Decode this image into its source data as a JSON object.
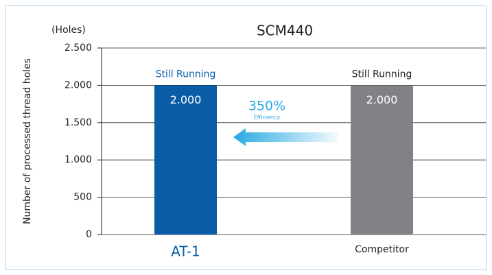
{
  "chart_data": {
    "type": "bar",
    "title": "SCM440",
    "y_unit_label": "(Holes)",
    "y_axis_label": "Number of processed thread holes",
    "categories": [
      "AT-1",
      "Competitor"
    ],
    "values": [
      2000,
      2000
    ],
    "value_labels": [
      "2.000",
      "2.000"
    ],
    "colors": [
      "#0a5da5",
      "#818285"
    ],
    "category_colors": [
      "#0a5da5",
      "#222222"
    ],
    "bar_labels": [
      "Still Running",
      "Still Running"
    ],
    "annotations": [
      "350%",
      "Efficiency"
    ],
    "annotation_color": "#29a9e1",
    "ylim": [
      0,
      2500
    ],
    "yticks": [
      0,
      {
        "value": 500,
        "label": "500"
      },
      {
        "value": 1000,
        "label": "1.000"
      },
      {
        "value": 1500,
        "label": "1.500"
      },
      {
        "value": 2000,
        "label": "2.000"
      },
      {
        "value": 2500,
        "label": "2.500"
      }
    ],
    "grid": true
  }
}
